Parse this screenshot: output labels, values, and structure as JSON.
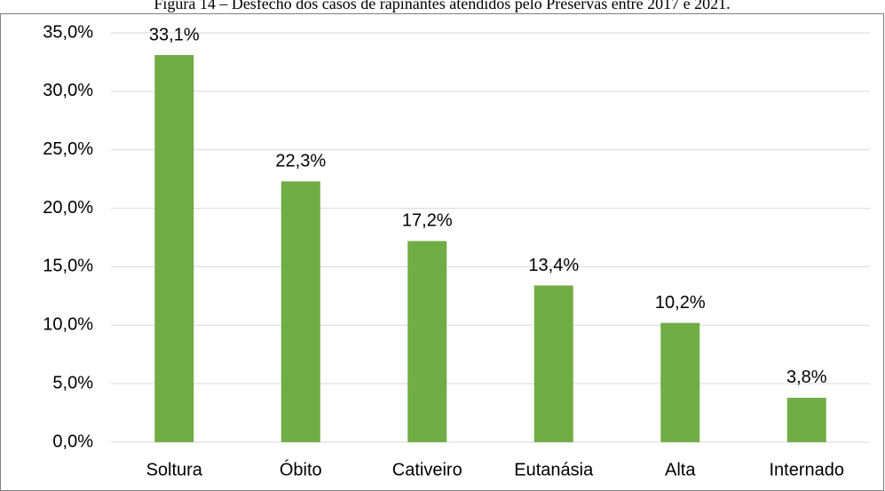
{
  "chart_data": {
    "type": "bar",
    "title": "Figura 14 – Desfecho dos casos de rapinantes atendidos pelo Preservas entre 2017 e 2021.",
    "categories": [
      "Soltura",
      "Óbito",
      "Cativeiro",
      "Eutanásia",
      "Alta",
      "Internado"
    ],
    "values": [
      33.1,
      22.3,
      17.2,
      13.4,
      10.2,
      3.8
    ],
    "value_labels": [
      "33,1%",
      "22,3%",
      "17,2%",
      "13,4%",
      "10,2%",
      "3,8%"
    ],
    "color": "#70ad47",
    "ylim": [
      0,
      35
    ],
    "yticks": [
      {
        "value": 0,
        "label": "0,0%"
      },
      {
        "value": 5,
        "label": "5,0%"
      },
      {
        "value": 10,
        "label": "10,0%"
      },
      {
        "value": 15,
        "label": "15,0%"
      },
      {
        "value": 20,
        "label": "20,0%"
      },
      {
        "value": 25,
        "label": "25,0%"
      },
      {
        "value": 30,
        "label": "30,0%"
      },
      {
        "value": 35,
        "label": "35,0%"
      }
    ],
    "grid": true
  }
}
